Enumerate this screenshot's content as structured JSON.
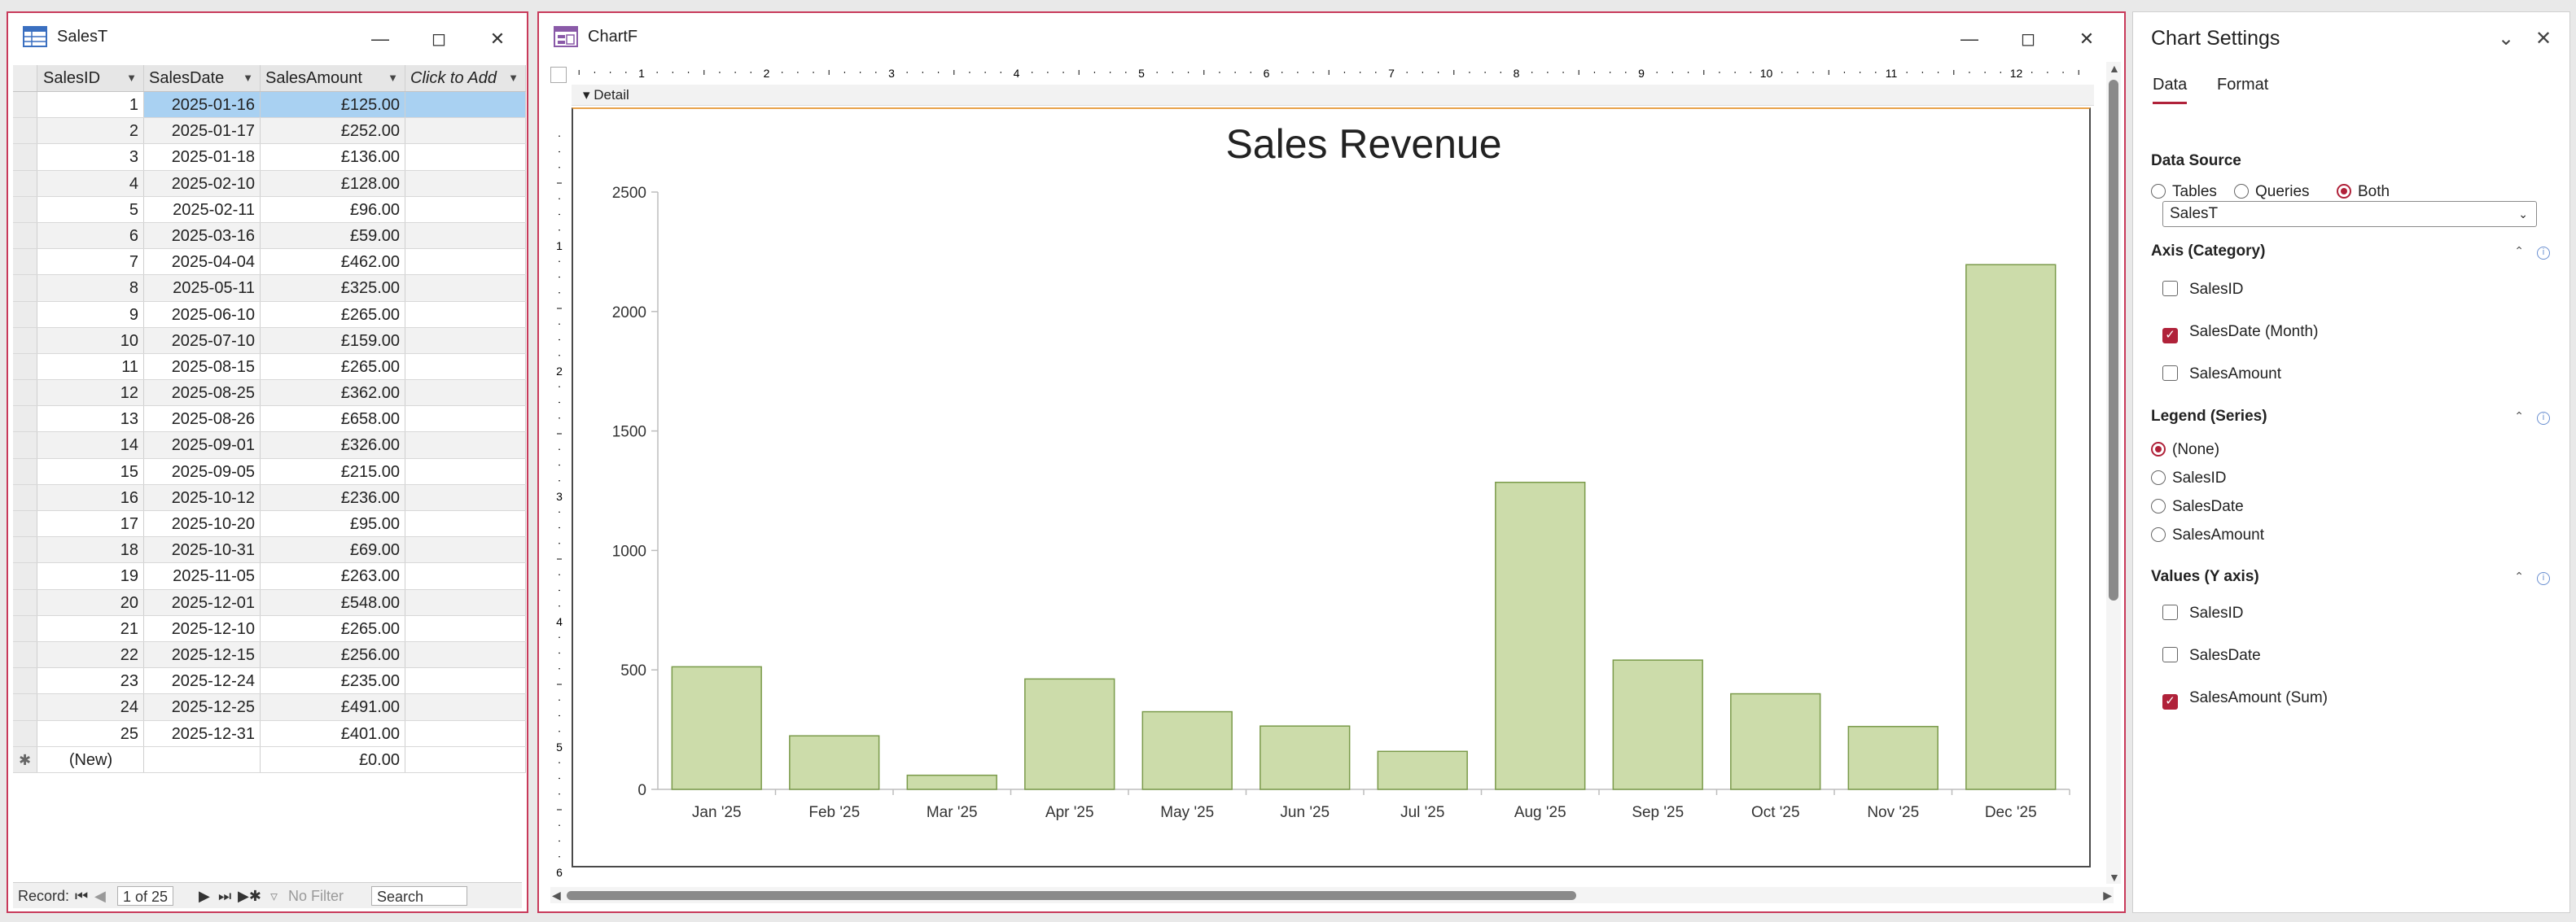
{
  "table_window": {
    "title": "SalesT",
    "columns": [
      "SalesID",
      "SalesDate",
      "SalesAmount",
      "Click to Add"
    ],
    "rows": [
      [
        "1",
        "2025-01-16",
        "£125.00"
      ],
      [
        "2",
        "2025-01-17",
        "£252.00"
      ],
      [
        "3",
        "2025-01-18",
        "£136.00"
      ],
      [
        "4",
        "2025-02-10",
        "£128.00"
      ],
      [
        "5",
        "2025-02-11",
        "£96.00"
      ],
      [
        "6",
        "2025-03-16",
        "£59.00"
      ],
      [
        "7",
        "2025-04-04",
        "£462.00"
      ],
      [
        "8",
        "2025-05-11",
        "£325.00"
      ],
      [
        "9",
        "2025-06-10",
        "£265.00"
      ],
      [
        "10",
        "2025-07-10",
        "£159.00"
      ],
      [
        "11",
        "2025-08-15",
        "£265.00"
      ],
      [
        "12",
        "2025-08-25",
        "£362.00"
      ],
      [
        "13",
        "2025-08-26",
        "£658.00"
      ],
      [
        "14",
        "2025-09-01",
        "£326.00"
      ],
      [
        "15",
        "2025-09-05",
        "£215.00"
      ],
      [
        "16",
        "2025-10-12",
        "£236.00"
      ],
      [
        "17",
        "2025-10-20",
        "£95.00"
      ],
      [
        "18",
        "2025-10-31",
        "£69.00"
      ],
      [
        "19",
        "2025-11-05",
        "£263.00"
      ],
      [
        "20",
        "2025-12-01",
        "£548.00"
      ],
      [
        "21",
        "2025-12-10",
        "£265.00"
      ],
      [
        "22",
        "2025-12-15",
        "£256.00"
      ],
      [
        "23",
        "2025-12-24",
        "£235.00"
      ],
      [
        "24",
        "2025-12-25",
        "£491.00"
      ],
      [
        "25",
        "2025-12-31",
        "£401.00"
      ]
    ],
    "new_row": {
      "id": "(New)",
      "amount": "£0.00"
    },
    "nav": {
      "label": "Record:",
      "position": "1 of 25",
      "filter": "No Filter",
      "search": "Search"
    }
  },
  "chart_window": {
    "title": "ChartF",
    "section_label": "Detail",
    "ruler_numbers": [
      "1",
      "2",
      "3",
      "4",
      "5",
      "6",
      "7",
      "8",
      "9",
      "10",
      "11",
      "12"
    ],
    "ruler_v_numbers": [
      "1",
      "2",
      "3",
      "4",
      "5",
      "6"
    ]
  },
  "chart_data": {
    "type": "bar",
    "title": "Sales Revenue",
    "xlabel": "",
    "ylabel": "",
    "categories": [
      "Jan '25",
      "Feb '25",
      "Mar '25",
      "Apr '25",
      "May '25",
      "Jun '25",
      "Jul '25",
      "Aug '25",
      "Sep '25",
      "Oct '25",
      "Nov '25",
      "Dec '25"
    ],
    "values": [
      513,
      224,
      59,
      462,
      325,
      265,
      159,
      1285,
      541,
      400,
      263,
      2196
    ],
    "yticks": [
      "0",
      "500",
      "1000",
      "1500",
      "2000",
      "2500"
    ],
    "ylim": [
      0,
      2500
    ],
    "grid": false,
    "legend": "none",
    "bar_color": "#ccdcaa",
    "bar_edge": "#7a9a4a"
  },
  "settings": {
    "title": "Chart Settings",
    "tabs": [
      "Data",
      "Format"
    ],
    "data_source": {
      "heading": "Data Source",
      "options": [
        "Tables",
        "Queries",
        "Both"
      ],
      "selected_option": "Both",
      "selected_source": "SalesT"
    },
    "axis": {
      "heading": "Axis (Category)",
      "items": [
        {
          "label": "SalesID",
          "checked": false
        },
        {
          "label": "SalesDate (Month)",
          "checked": true
        },
        {
          "label": "SalesAmount",
          "checked": false
        }
      ]
    },
    "legend": {
      "heading": "Legend (Series)",
      "items": [
        "(None)",
        "SalesID",
        "SalesDate",
        "SalesAmount"
      ],
      "selected": "(None)"
    },
    "values": {
      "heading": "Values (Y axis)",
      "items": [
        {
          "label": "SalesID",
          "checked": false
        },
        {
          "label": "SalesDate",
          "checked": false
        },
        {
          "label": "SalesAmount (Sum)",
          "checked": true
        }
      ]
    }
  },
  "colors": {
    "accent": "#b0223a",
    "selection": "#a9d1f2",
    "window_border": "#c83a5a"
  }
}
